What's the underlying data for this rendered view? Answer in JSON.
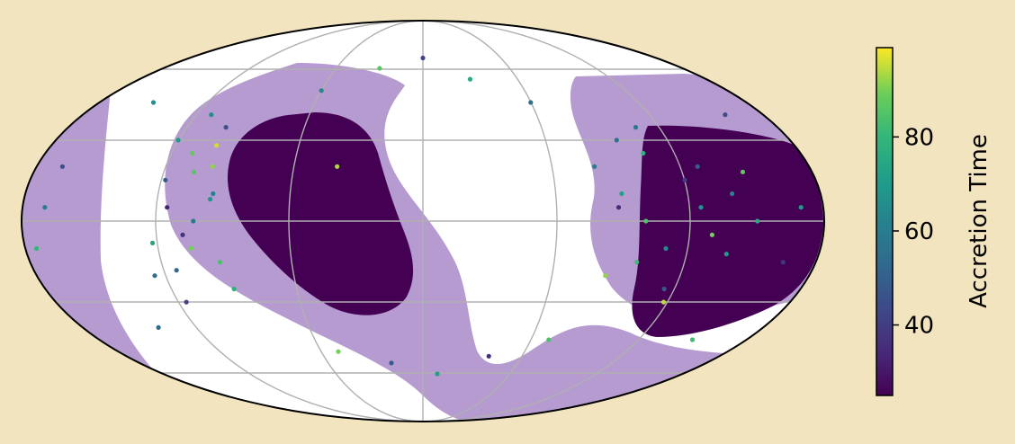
{
  "chart_data": {
    "type": "scatter",
    "projection": "mollweide",
    "title": "",
    "grid": true,
    "background_color": "#f3e4c0",
    "map_background": "#ffffff",
    "region_colors": {
      "outer": "#b69bd0",
      "inner": "#440154",
      "grid": "#b0b0b0"
    },
    "colormap": "viridis",
    "colorbar": {
      "label": "Accretion Time",
      "ticks": [
        40,
        60,
        80
      ],
      "tick_labels": [
        "40",
        "60",
        "80"
      ],
      "range": [
        25,
        99
      ]
    },
    "series": [
      {
        "color_by": "accretion_time",
        "note_lon_lat": "deg",
        "points": [
          [
            -120,
            30,
            70
          ],
          [
            -110,
            25,
            88
          ],
          [
            -100,
            35,
            45
          ],
          [
            -95,
            10,
            62
          ],
          [
            -115,
            5,
            33
          ],
          [
            -105,
            -10,
            90
          ],
          [
            -125,
            -20,
            55
          ],
          [
            -90,
            -25,
            78
          ],
          [
            -118,
            15,
            48
          ],
          [
            -98,
            20,
            92
          ],
          [
            -108,
            -5,
            37
          ],
          [
            -112,
            40,
            66
          ],
          [
            -93,
            -15,
            84
          ],
          [
            -103,
            0,
            58
          ],
          [
            -122,
            -8,
            74
          ],
          [
            -100,
            28,
            96
          ],
          [
            -116,
            -30,
            42
          ],
          [
            -96,
            8,
            68
          ],
          [
            -106,
            18,
            86
          ],
          [
            -114,
            -18,
            52
          ],
          [
            80,
            20,
            60
          ],
          [
            90,
            10,
            72
          ],
          [
            100,
            0,
            85
          ],
          [
            110,
            -10,
            65
          ],
          [
            120,
            15,
            40
          ],
          [
            85,
            -20,
            92
          ],
          [
            95,
            30,
            55
          ],
          [
            105,
            25,
            78
          ],
          [
            115,
            -25,
            48
          ],
          [
            125,
            5,
            68
          ],
          [
            130,
            -5,
            90
          ],
          [
            140,
            10,
            62
          ],
          [
            150,
            0,
            75
          ],
          [
            88,
            5,
            35
          ],
          [
            98,
            -15,
            82
          ],
          [
            108,
            35,
            58
          ],
          [
            118,
            -30,
            95
          ],
          [
            128,
            20,
            50
          ],
          [
            138,
            -12,
            70
          ],
          [
            148,
            18,
            88
          ],
          [
            -170,
            5,
            60
          ],
          [
            -175,
            -10,
            80
          ],
          [
            -168,
            20,
            45
          ],
          [
            170,
            5,
            70
          ],
          [
            165,
            -15,
            38
          ],
          [
            -60,
            50,
            64
          ],
          [
            -30,
            60,
            86
          ],
          [
            0,
            65,
            42
          ],
          [
            30,
            55,
            76
          ],
          [
            60,
            45,
            56
          ],
          [
            -50,
            -50,
            90
          ],
          [
            -20,
            -55,
            48
          ],
          [
            10,
            -60,
            72
          ],
          [
            40,
            -52,
            36
          ],
          [
            70,
            -45,
            84
          ],
          [
            -150,
            45,
            66
          ],
          [
            -140,
            -40,
            54
          ],
          [
            150,
            -45,
            82
          ],
          [
            160,
            40,
            44
          ],
          [
            -40,
            20,
            94
          ]
        ]
      }
    ]
  }
}
